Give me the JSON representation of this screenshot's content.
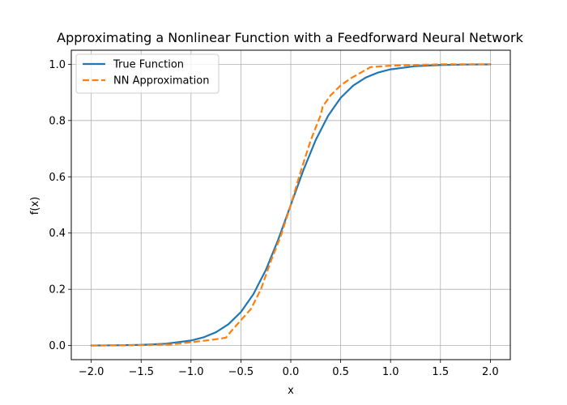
{
  "chart_data": {
    "type": "line",
    "title": "Approximating a Nonlinear Function with a Feedforward Neural Network",
    "xlabel": "x",
    "ylabel": "f(x)",
    "xlim": [
      -2.2,
      2.2
    ],
    "ylim": [
      -0.05,
      1.05
    ],
    "xticks": [
      -2.0,
      -1.5,
      -1.0,
      -0.5,
      0.0,
      0.5,
      1.0,
      1.5,
      2.0
    ],
    "xtick_labels": [
      "−2.0",
      "−1.5",
      "−1.0",
      "−0.5",
      "0.0",
      "0.5",
      "1.0",
      "1.5",
      "2.0"
    ],
    "yticks": [
      0.0,
      0.2,
      0.4,
      0.6,
      0.8,
      1.0
    ],
    "ytick_labels": [
      "0.0",
      "0.2",
      "0.4",
      "0.6",
      "0.8",
      "1.0"
    ],
    "grid": true,
    "legend_position": "top-left",
    "series": [
      {
        "name": "True Function",
        "color": "#1f77b4",
        "style": "solid",
        "x": [
          -2.0,
          -1.75,
          -1.5,
          -1.25,
          -1.0,
          -0.875,
          -0.75,
          -0.625,
          -0.5,
          -0.375,
          -0.25,
          -0.125,
          0.0,
          0.125,
          0.25,
          0.375,
          0.5,
          0.625,
          0.75,
          0.875,
          1.0,
          1.25,
          1.5,
          1.75,
          2.0
        ],
        "y": [
          0.0003,
          0.0009,
          0.0025,
          0.0067,
          0.018,
          0.0293,
          0.0474,
          0.0759,
          0.1192,
          0.1824,
          0.2689,
          0.3775,
          0.5,
          0.6225,
          0.7311,
          0.8176,
          0.8808,
          0.9241,
          0.9526,
          0.9707,
          0.982,
          0.9933,
          0.9975,
          0.9991,
          0.9997
        ]
      },
      {
        "name": "NN Approximation",
        "color": "#ff7f0e",
        "style": "dashed",
        "x": [
          -2.0,
          -1.5,
          -1.2,
          -1.0,
          -0.8,
          -0.65,
          -0.6,
          -0.5,
          -0.4,
          -0.3,
          -0.2,
          -0.1,
          0.0,
          0.1,
          0.2,
          0.3,
          0.32,
          0.4,
          0.5,
          0.6,
          0.7,
          0.8,
          1.0,
          1.5,
          2.0
        ],
        "y": [
          0.0,
          0.002,
          0.004,
          0.012,
          0.02,
          0.028,
          0.05,
          0.09,
          0.13,
          0.2,
          0.3,
          0.39,
          0.5,
          0.62,
          0.73,
          0.82,
          0.85,
          0.89,
          0.925,
          0.95,
          0.97,
          0.99,
          0.995,
          1.0,
          1.0
        ]
      }
    ]
  }
}
